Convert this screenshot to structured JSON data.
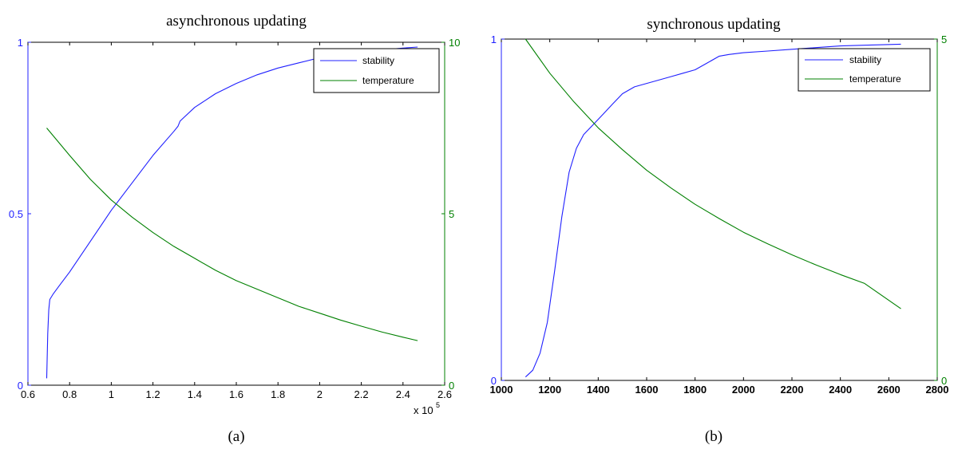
{
  "chart_data": [
    {
      "type": "line",
      "title": "asynchronous updating",
      "caption": "(a)",
      "xlim": [
        0.6,
        2.6
      ],
      "x_ticks": [
        "0.6",
        "0.8",
        "1",
        "1.2",
        "1.4",
        "1.6",
        "1.8",
        "2",
        "2.2",
        "2.4",
        "2.6"
      ],
      "x_multiplier": {
        "base": "x 10",
        "exponent": "5"
      },
      "y_left": {
        "ylim": [
          0,
          1
        ],
        "ticks": [
          "0",
          "0.5",
          "1"
        ],
        "color": "#2020ff"
      },
      "y_right": {
        "ylim": [
          0,
          10
        ],
        "ticks": [
          "0",
          "5",
          "10"
        ],
        "color": "#008000"
      },
      "legend": {
        "location": "top-right"
      },
      "series": [
        {
          "name": "stability",
          "axis": "left",
          "color": "#2020ff",
          "x": [
            0.69,
            0.695,
            0.7,
            0.705,
            0.72,
            0.75,
            0.8,
            0.9,
            1.0,
            1.1,
            1.2,
            1.3,
            1.32,
            1.33,
            1.4,
            1.5,
            1.6,
            1.7,
            1.8,
            1.9,
            2.0,
            2.1,
            2.2,
            2.3,
            2.4,
            2.47
          ],
          "y": [
            0.02,
            0.15,
            0.22,
            0.25,
            0.265,
            0.29,
            0.33,
            0.42,
            0.51,
            0.59,
            0.67,
            0.74,
            0.755,
            0.77,
            0.81,
            0.85,
            0.88,
            0.905,
            0.925,
            0.94,
            0.955,
            0.965,
            0.972,
            0.978,
            0.983,
            0.986
          ]
        },
        {
          "name": "temperature",
          "axis": "right",
          "color": "#008000",
          "x": [
            0.69,
            0.8,
            0.9,
            1.0,
            1.1,
            1.2,
            1.3,
            1.4,
            1.5,
            1.6,
            1.7,
            1.8,
            1.9,
            2.0,
            2.1,
            2.2,
            2.3,
            2.4,
            2.47
          ],
          "y": [
            7.5,
            6.7,
            6.0,
            5.4,
            4.9,
            4.45,
            4.05,
            3.7,
            3.35,
            3.05,
            2.8,
            2.55,
            2.3,
            2.1,
            1.9,
            1.72,
            1.55,
            1.4,
            1.3
          ]
        }
      ]
    },
    {
      "type": "line",
      "title": "synchronous updating",
      "caption": "(b)",
      "xlim": [
        1000,
        2800
      ],
      "x_ticks": [
        "1000",
        "1200",
        "1400",
        "1600",
        "1800",
        "2000",
        "2200",
        "2400",
        "2600",
        "2800"
      ],
      "y_left": {
        "ylim": [
          0,
          1
        ],
        "ticks": [
          "0",
          "1"
        ],
        "color": "#2020ff"
      },
      "y_right": {
        "ylim": [
          0,
          5
        ],
        "ticks": [
          "0",
          "5"
        ],
        "color": "#008000"
      },
      "legend": {
        "location": "top-right"
      },
      "series": [
        {
          "name": "stability",
          "axis": "left",
          "color": "#2020ff",
          "x": [
            1100,
            1130,
            1160,
            1190,
            1220,
            1250,
            1280,
            1310,
            1340,
            1380,
            1420,
            1460,
            1500,
            1550,
            1600,
            1650,
            1700,
            1750,
            1800,
            1850,
            1900,
            1940,
            2000,
            2100,
            2200,
            2300,
            2400,
            2500,
            2650
          ],
          "y": [
            0.01,
            0.03,
            0.08,
            0.17,
            0.32,
            0.48,
            0.61,
            0.68,
            0.72,
            0.75,
            0.78,
            0.81,
            0.84,
            0.86,
            0.87,
            0.88,
            0.89,
            0.9,
            0.91,
            0.93,
            0.95,
            0.955,
            0.96,
            0.965,
            0.97,
            0.975,
            0.98,
            0.982,
            0.985
          ]
        },
        {
          "name": "temperature",
          "axis": "right",
          "color": "#008000",
          "x": [
            1100,
            1200,
            1300,
            1400,
            1500,
            1600,
            1700,
            1800,
            1900,
            2000,
            2100,
            2200,
            2300,
            2400,
            2500,
            2650
          ],
          "y": [
            5.0,
            4.5,
            4.08,
            3.7,
            3.38,
            3.08,
            2.82,
            2.58,
            2.37,
            2.17,
            2.0,
            1.84,
            1.69,
            1.55,
            1.42,
            1.05
          ]
        }
      ]
    }
  ]
}
